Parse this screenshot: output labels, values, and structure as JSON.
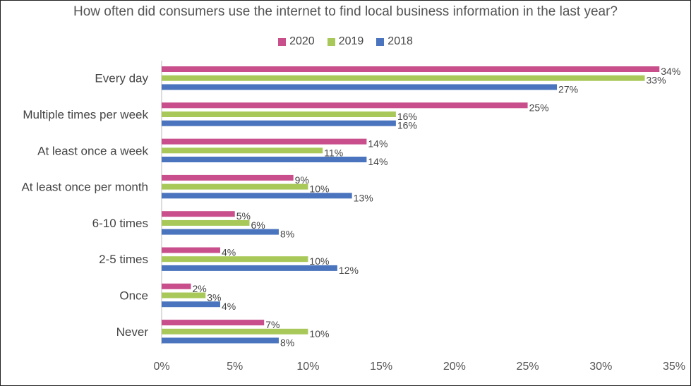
{
  "chart_data": {
    "type": "bar",
    "orientation": "horizontal",
    "title": "How often did consumers use the internet to find local business information in the last year?",
    "categories": [
      "Every day",
      "Multiple times per week",
      "At least once a week",
      "At least once per month",
      "6-10 times",
      "2-5 times",
      "Once",
      "Never"
    ],
    "series": [
      {
        "name": "2020",
        "color": "#c94f8c",
        "values": [
          34,
          25,
          14,
          9,
          5,
          4,
          2,
          7
        ]
      },
      {
        "name": "2019",
        "color": "#a8c95a",
        "values": [
          33,
          16,
          11,
          10,
          6,
          10,
          3,
          10
        ]
      },
      {
        "name": "2018",
        "color": "#4a74bd",
        "values": [
          27,
          16,
          14,
          13,
          8,
          12,
          4,
          8
        ]
      }
    ],
    "xlim": [
      0,
      35
    ],
    "xticks": [
      0,
      5,
      10,
      15,
      20,
      25,
      30,
      35
    ],
    "tick_format": "%",
    "legend_position": "top-center",
    "grid": false
  }
}
